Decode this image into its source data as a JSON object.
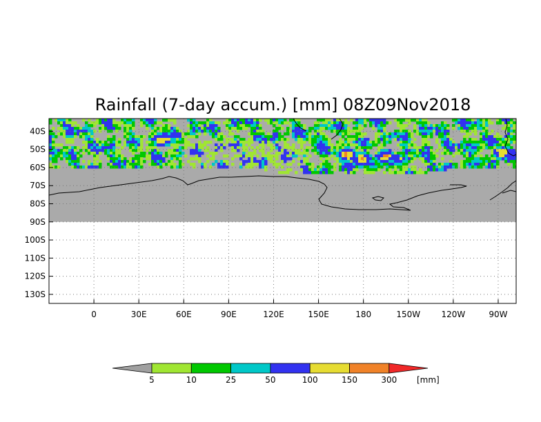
{
  "title": "Rainfall (7-day accum.) [mm] 08Z09Nov2018",
  "map": {
    "projection": "lat-lon",
    "lon_range": [
      -30,
      282
    ],
    "lat_range": [
      -135,
      -33
    ],
    "data_lat_limit": -60,
    "land_limit_lat": -90,
    "land_color": "#aaaaaa",
    "grid": true
  },
  "lat_ticks": [
    {
      "lat": -40,
      "label": "40S"
    },
    {
      "lat": -50,
      "label": "50S"
    },
    {
      "lat": -60,
      "label": "60S"
    },
    {
      "lat": -70,
      "label": "70S"
    },
    {
      "lat": -80,
      "label": "80S"
    },
    {
      "lat": -90,
      "label": "90S"
    },
    {
      "lat": -100,
      "label": "100S"
    },
    {
      "lat": -110,
      "label": "110S"
    },
    {
      "lat": -120,
      "label": "120S"
    },
    {
      "lat": -130,
      "label": "130S"
    }
  ],
  "lon_ticks": [
    {
      "lon": 0,
      "label": "0"
    },
    {
      "lon": 30,
      "label": "30E"
    },
    {
      "lon": 60,
      "label": "60E"
    },
    {
      "lon": 90,
      "label": "90E"
    },
    {
      "lon": 120,
      "label": "120E"
    },
    {
      "lon": 150,
      "label": "150E"
    },
    {
      "lon": 180,
      "label": "180"
    },
    {
      "lon": 210,
      "label": "150W"
    },
    {
      "lon": 240,
      "label": "120W"
    },
    {
      "lon": 270,
      "label": "90W"
    }
  ],
  "legend": {
    "unit": "[mm]",
    "below_color": "#a0a0a0",
    "above_color": "#f02828",
    "bins": [
      {
        "color": "#a0e632",
        "label": "5"
      },
      {
        "color": "#00c800",
        "label": "10"
      },
      {
        "color": "#00c8c8",
        "label": "25"
      },
      {
        "color": "#3232f0",
        "label": "50"
      },
      {
        "color": "#e6dc32",
        "label": "100"
      },
      {
        "color": "#f08228",
        "label": "150"
      }
    ],
    "last_label": "300"
  },
  "rain_hotspots": [
    {
      "lon": 45,
      "lat": -44,
      "level": 5
    },
    {
      "lon": 168,
      "lat": -52,
      "level": 5
    },
    {
      "lon": 178,
      "lat": -55,
      "level": 5
    },
    {
      "lon": 194,
      "lat": -53,
      "level": 5
    },
    {
      "lon": 203,
      "lat": -55,
      "level": 4
    },
    {
      "lon": 272,
      "lat": -51,
      "level": 5
    },
    {
      "lon": 185,
      "lat": -58,
      "level": 3
    },
    {
      "lon": 150,
      "lat": -45,
      "level": 3
    },
    {
      "lon": 253,
      "lat": -48,
      "level": 3
    }
  ]
}
